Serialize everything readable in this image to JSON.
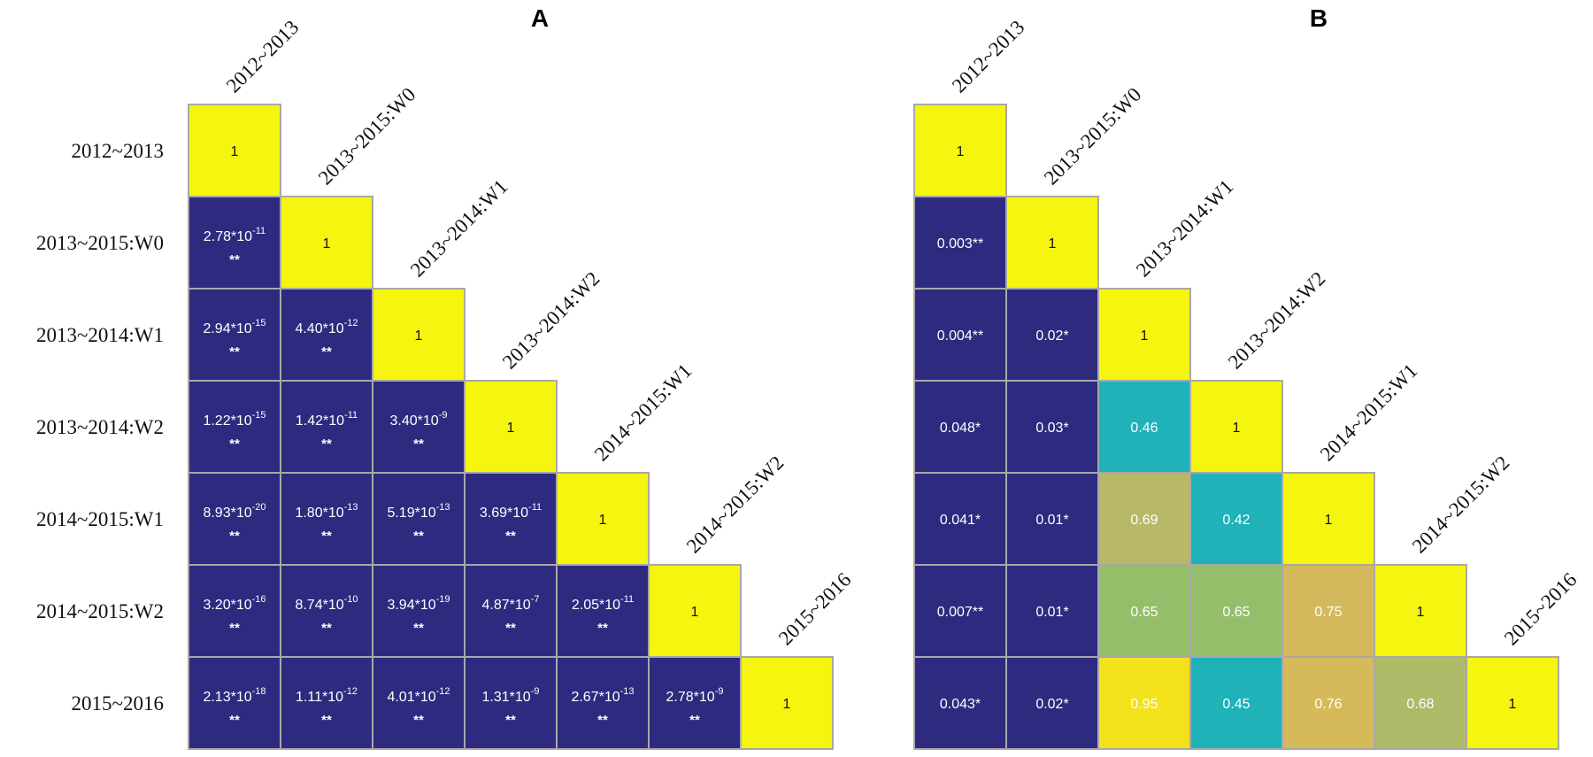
{
  "chart_data": [
    {
      "type": "heatmap",
      "title": "A",
      "labels": [
        "2012~2013",
        "2013~2015:W0",
        "2013~2014:W1",
        "2013~2014:W2",
        "2014~2015:W1",
        "2014~2015:W2",
        "2015~2016"
      ],
      "diagonal_value": "1",
      "cells": [
        {
          "row": 1,
          "col": 0,
          "mantissa": "2.78",
          "exponent": "-11",
          "stars": "**"
        },
        {
          "row": 2,
          "col": 0,
          "mantissa": "2.94",
          "exponent": "-15",
          "stars": "**"
        },
        {
          "row": 2,
          "col": 1,
          "mantissa": "4.40",
          "exponent": "-12",
          "stars": "**"
        },
        {
          "row": 3,
          "col": 0,
          "mantissa": "1.22",
          "exponent": "-15",
          "stars": "**"
        },
        {
          "row": 3,
          "col": 1,
          "mantissa": "1.42",
          "exponent": "-11",
          "stars": "**"
        },
        {
          "row": 3,
          "col": 2,
          "mantissa": "3.40",
          "exponent": "-9",
          "stars": "**"
        },
        {
          "row": 4,
          "col": 0,
          "mantissa": "8.93",
          "exponent": "-20",
          "stars": "**"
        },
        {
          "row": 4,
          "col": 1,
          "mantissa": "1.80",
          "exponent": "-13",
          "stars": "**"
        },
        {
          "row": 4,
          "col": 2,
          "mantissa": "5.19",
          "exponent": "-13",
          "stars": "**"
        },
        {
          "row": 4,
          "col": 3,
          "mantissa": "3.69",
          "exponent": "-11",
          "stars": "**"
        },
        {
          "row": 5,
          "col": 0,
          "mantissa": "3.20",
          "exponent": "-16",
          "stars": "**"
        },
        {
          "row": 5,
          "col": 1,
          "mantissa": "8.74",
          "exponent": "-10",
          "stars": "**"
        },
        {
          "row": 5,
          "col": 2,
          "mantissa": "3.94",
          "exponent": "-19",
          "stars": "**"
        },
        {
          "row": 5,
          "col": 3,
          "mantissa": "4.87",
          "exponent": "-7",
          "stars": "**"
        },
        {
          "row": 5,
          "col": 4,
          "mantissa": "2.05",
          "exponent": "-11",
          "stars": "**"
        },
        {
          "row": 6,
          "col": 0,
          "mantissa": "2.13",
          "exponent": "-18",
          "stars": "**"
        },
        {
          "row": 6,
          "col": 1,
          "mantissa": "1.11",
          "exponent": "-12",
          "stars": "**"
        },
        {
          "row": 6,
          "col": 2,
          "mantissa": "4.01",
          "exponent": "-12",
          "stars": "**"
        },
        {
          "row": 6,
          "col": 3,
          "mantissa": "1.31",
          "exponent": "-9",
          "stars": "**"
        },
        {
          "row": 6,
          "col": 4,
          "mantissa": "2.67",
          "exponent": "-13",
          "stars": "**"
        },
        {
          "row": 6,
          "col": 5,
          "mantissa": "2.78",
          "exponent": "-9",
          "stars": "**"
        }
      ]
    },
    {
      "type": "heatmap",
      "title": "B",
      "labels": [
        "2012~2013",
        "2013~2015:W0",
        "2013~2014:W1",
        "2013~2014:W2",
        "2014~2015:W1",
        "2014~2015:W2",
        "2015~2016"
      ],
      "diagonal_value": "1",
      "cells": [
        {
          "row": 1,
          "col": 0,
          "value": 0.003,
          "text": "0.003**"
        },
        {
          "row": 2,
          "col": 0,
          "value": 0.004,
          "text": "0.004**"
        },
        {
          "row": 2,
          "col": 1,
          "value": 0.02,
          "text": "0.02*"
        },
        {
          "row": 3,
          "col": 0,
          "value": 0.048,
          "text": "0.048*"
        },
        {
          "row": 3,
          "col": 1,
          "value": 0.03,
          "text": "0.03*"
        },
        {
          "row": 3,
          "col": 2,
          "value": 0.46,
          "text": "0.46"
        },
        {
          "row": 4,
          "col": 0,
          "value": 0.041,
          "text": "0.041*"
        },
        {
          "row": 4,
          "col": 1,
          "value": 0.01,
          "text": "0.01*"
        },
        {
          "row": 4,
          "col": 2,
          "value": 0.69,
          "text": "0.69"
        },
        {
          "row": 4,
          "col": 3,
          "value": 0.42,
          "text": "0.42"
        },
        {
          "row": 5,
          "col": 0,
          "value": 0.007,
          "text": "0.007**"
        },
        {
          "row": 5,
          "col": 1,
          "value": 0.01,
          "text": "0.01*"
        },
        {
          "row": 5,
          "col": 2,
          "value": 0.65,
          "text": "0.65"
        },
        {
          "row": 5,
          "col": 3,
          "value": 0.65,
          "text": "0.65"
        },
        {
          "row": 5,
          "col": 4,
          "value": 0.75,
          "text": "0.75"
        },
        {
          "row": 6,
          "col": 0,
          "value": 0.043,
          "text": "0.043*"
        },
        {
          "row": 6,
          "col": 1,
          "value": 0.02,
          "text": "0.02*"
        },
        {
          "row": 6,
          "col": 2,
          "value": 0.95,
          "text": "0.95"
        },
        {
          "row": 6,
          "col": 3,
          "value": 0.45,
          "text": "0.45"
        },
        {
          "row": 6,
          "col": 4,
          "value": 0.76,
          "text": "0.76"
        },
        {
          "row": 6,
          "col": 5,
          "value": 0.68,
          "text": "0.68"
        }
      ]
    }
  ],
  "colors": {
    "diagonal": "#f5f50f",
    "significant": "#2e2a7f",
    "border": "#a8a8a8",
    "colorscale": [
      {
        "v": 0.42,
        "c": "#1fb2b8"
      },
      {
        "v": 0.46,
        "c": "#1fb2b8"
      },
      {
        "v": 0.65,
        "c": "#95be6a"
      },
      {
        "v": 0.69,
        "c": "#b8b968"
      },
      {
        "v": 0.75,
        "c": "#d4b85c"
      },
      {
        "v": 0.95,
        "c": "#f2e21c"
      }
    ]
  }
}
